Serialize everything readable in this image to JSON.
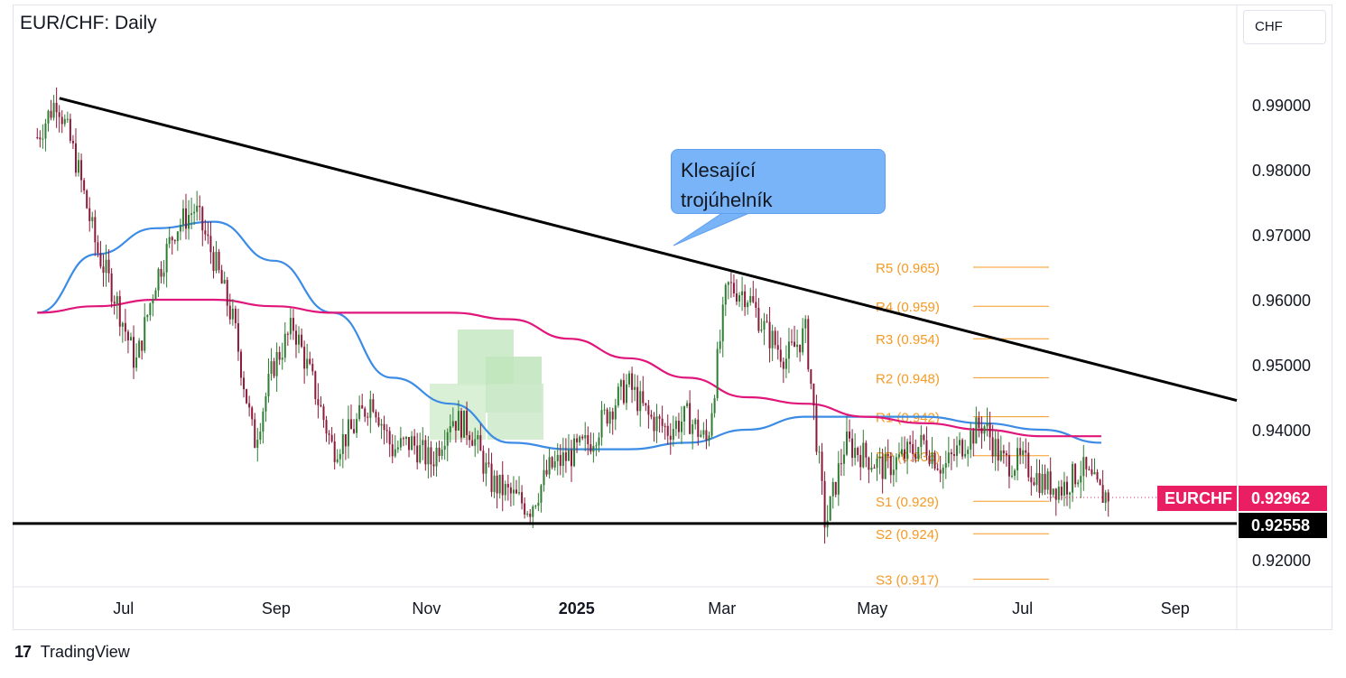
{
  "header": {
    "title": "EUR/CHF: Daily",
    "currency": "CHF"
  },
  "annotation": {
    "line1": "Klesající",
    "line2": "trojúhelník"
  },
  "price_badges": {
    "symbol": "EURCHF",
    "last_price": "0.92962",
    "support_price": "0.92558"
  },
  "footer": {
    "brand": "TradingView"
  },
  "colors": {
    "up_candle": "#2e7d32",
    "down_candle": "#8b1a3a",
    "ma_fast": "#3c8ce6",
    "ma_slow": "#e0167a",
    "pivot_levels": "#f59a23",
    "trendline": "#000000",
    "badge_symbol_bg": "#e91e63"
  },
  "chart_data": {
    "type": "line",
    "title": "EUR/CHF: Daily",
    "ylim": [
      0.9135,
      0.9965
    ],
    "y_ticks": [
      "0.99000",
      "0.98000",
      "0.97000",
      "0.96000",
      "0.95000",
      "0.94000",
      "0.92000"
    ],
    "x_ticks": [
      "Jul",
      "Sep",
      "Nov",
      "2025",
      "Mar",
      "May",
      "Jul",
      "Sep"
    ],
    "grid": false,
    "price_series": {
      "x": [
        "2024-05-27",
        "2024-06-04",
        "2024-06-12",
        "2024-06-20",
        "2024-06-28",
        "2024-07-06",
        "2024-07-14",
        "2024-07-22",
        "2024-07-30",
        "2024-08-07",
        "2024-08-15",
        "2024-08-23",
        "2024-08-31",
        "2024-09-08",
        "2024-09-16",
        "2024-09-24",
        "2024-10-02",
        "2024-10-10",
        "2024-10-18",
        "2024-10-26",
        "2024-11-03",
        "2024-11-11",
        "2024-11-19",
        "2024-11-27",
        "2024-12-05",
        "2024-12-13",
        "2024-12-21",
        "2024-12-29",
        "2025-01-06",
        "2025-01-14",
        "2025-01-22",
        "2025-01-30",
        "2025-02-07",
        "2025-02-15",
        "2025-02-23",
        "2025-03-03",
        "2025-03-11",
        "2025-03-19",
        "2025-03-27",
        "2025-04-04",
        "2025-04-12",
        "2025-04-20",
        "2025-04-28",
        "2025-05-06",
        "2025-05-14",
        "2025-05-22",
        "2025-05-30",
        "2025-06-07",
        "2025-06-15",
        "2025-06-23",
        "2025-07-01",
        "2025-07-09",
        "2025-07-17",
        "2025-07-25",
        "2025-08-02",
        "2025-08-05"
      ],
      "y": [
        0.985,
        0.991,
        0.981,
        0.968,
        0.96,
        0.95,
        0.963,
        0.971,
        0.974,
        0.966,
        0.956,
        0.938,
        0.95,
        0.956,
        0.947,
        0.937,
        0.94,
        0.945,
        0.937,
        0.938,
        0.935,
        0.942,
        0.94,
        0.932,
        0.93,
        0.928,
        0.934,
        0.936,
        0.938,
        0.943,
        0.947,
        0.942,
        0.94,
        0.942,
        0.938,
        0.962,
        0.961,
        0.955,
        0.951,
        0.955,
        0.925,
        0.938,
        0.936,
        0.934,
        0.936,
        0.938,
        0.934,
        0.938,
        0.941,
        0.935,
        0.935,
        0.932,
        0.931,
        0.934,
        0.93,
        0.93
      ]
    },
    "series": [
      {
        "name": "",
        "x": [
          "2024-05-27",
          "2024-06-20",
          "2024-07-14",
          "2024-08-07",
          "2024-08-31",
          "2024-09-24",
          "2024-10-18",
          "2024-11-11",
          "2024-12-05",
          "2024-12-29",
          "2025-01-22",
          "2025-02-15",
          "2025-03-11",
          "2025-04-04",
          "2025-04-28",
          "2025-05-22",
          "2025-06-15",
          "2025-07-09",
          "2025-08-02"
        ],
        "values": [
          0.958,
          0.967,
          0.971,
          0.972,
          0.966,
          0.958,
          0.948,
          0.944,
          0.938,
          0.937,
          0.937,
          0.938,
          0.94,
          0.942,
          0.942,
          0.942,
          0.941,
          0.94,
          0.938
        ]
      },
      {
        "name": "",
        "x": [
          "2024-05-27",
          "2024-06-20",
          "2024-07-14",
          "2024-08-07",
          "2024-08-31",
          "2024-09-24",
          "2024-10-18",
          "2024-11-11",
          "2024-12-05",
          "2024-12-29",
          "2025-01-22",
          "2025-02-15",
          "2025-03-11",
          "2025-04-04",
          "2025-04-28",
          "2025-05-22",
          "2025-06-15",
          "2025-07-09",
          "2025-08-02"
        ],
        "values": [
          0.958,
          0.959,
          0.96,
          0.96,
          0.959,
          0.958,
          0.958,
          0.958,
          0.957,
          0.954,
          0.951,
          0.948,
          0.945,
          0.944,
          0.942,
          0.941,
          0.94,
          0.939,
          0.939
        ]
      }
    ],
    "trendlines": [
      {
        "name": "",
        "from": [
          "2024-06-05",
          0.991
        ],
        "to": [
          "2025-09-26",
          0.9445
        ]
      },
      {
        "name": "",
        "from": [
          "2024-05-17",
          0.92558
        ],
        "to": [
          "2025-09-26",
          0.92558
        ]
      }
    ],
    "pivot_levels": [
      {
        "label": "R5 (0.965)",
        "value": 0.965
      },
      {
        "label": "R4 (0.959)",
        "value": 0.959
      },
      {
        "label": "R3 (0.954)",
        "value": 0.954
      },
      {
        "label": "R2 (0.948)",
        "value": 0.948
      },
      {
        "label": "R1 (0.942)",
        "value": 0.942
      },
      {
        "label": "PP (0.936)",
        "value": 0.936
      },
      {
        "label": "S1 (0.929)",
        "value": 0.929
      },
      {
        "label": "S2 (0.924)",
        "value": 0.924
      },
      {
        "label": "S3 (0.917)",
        "value": 0.917
      }
    ]
  }
}
